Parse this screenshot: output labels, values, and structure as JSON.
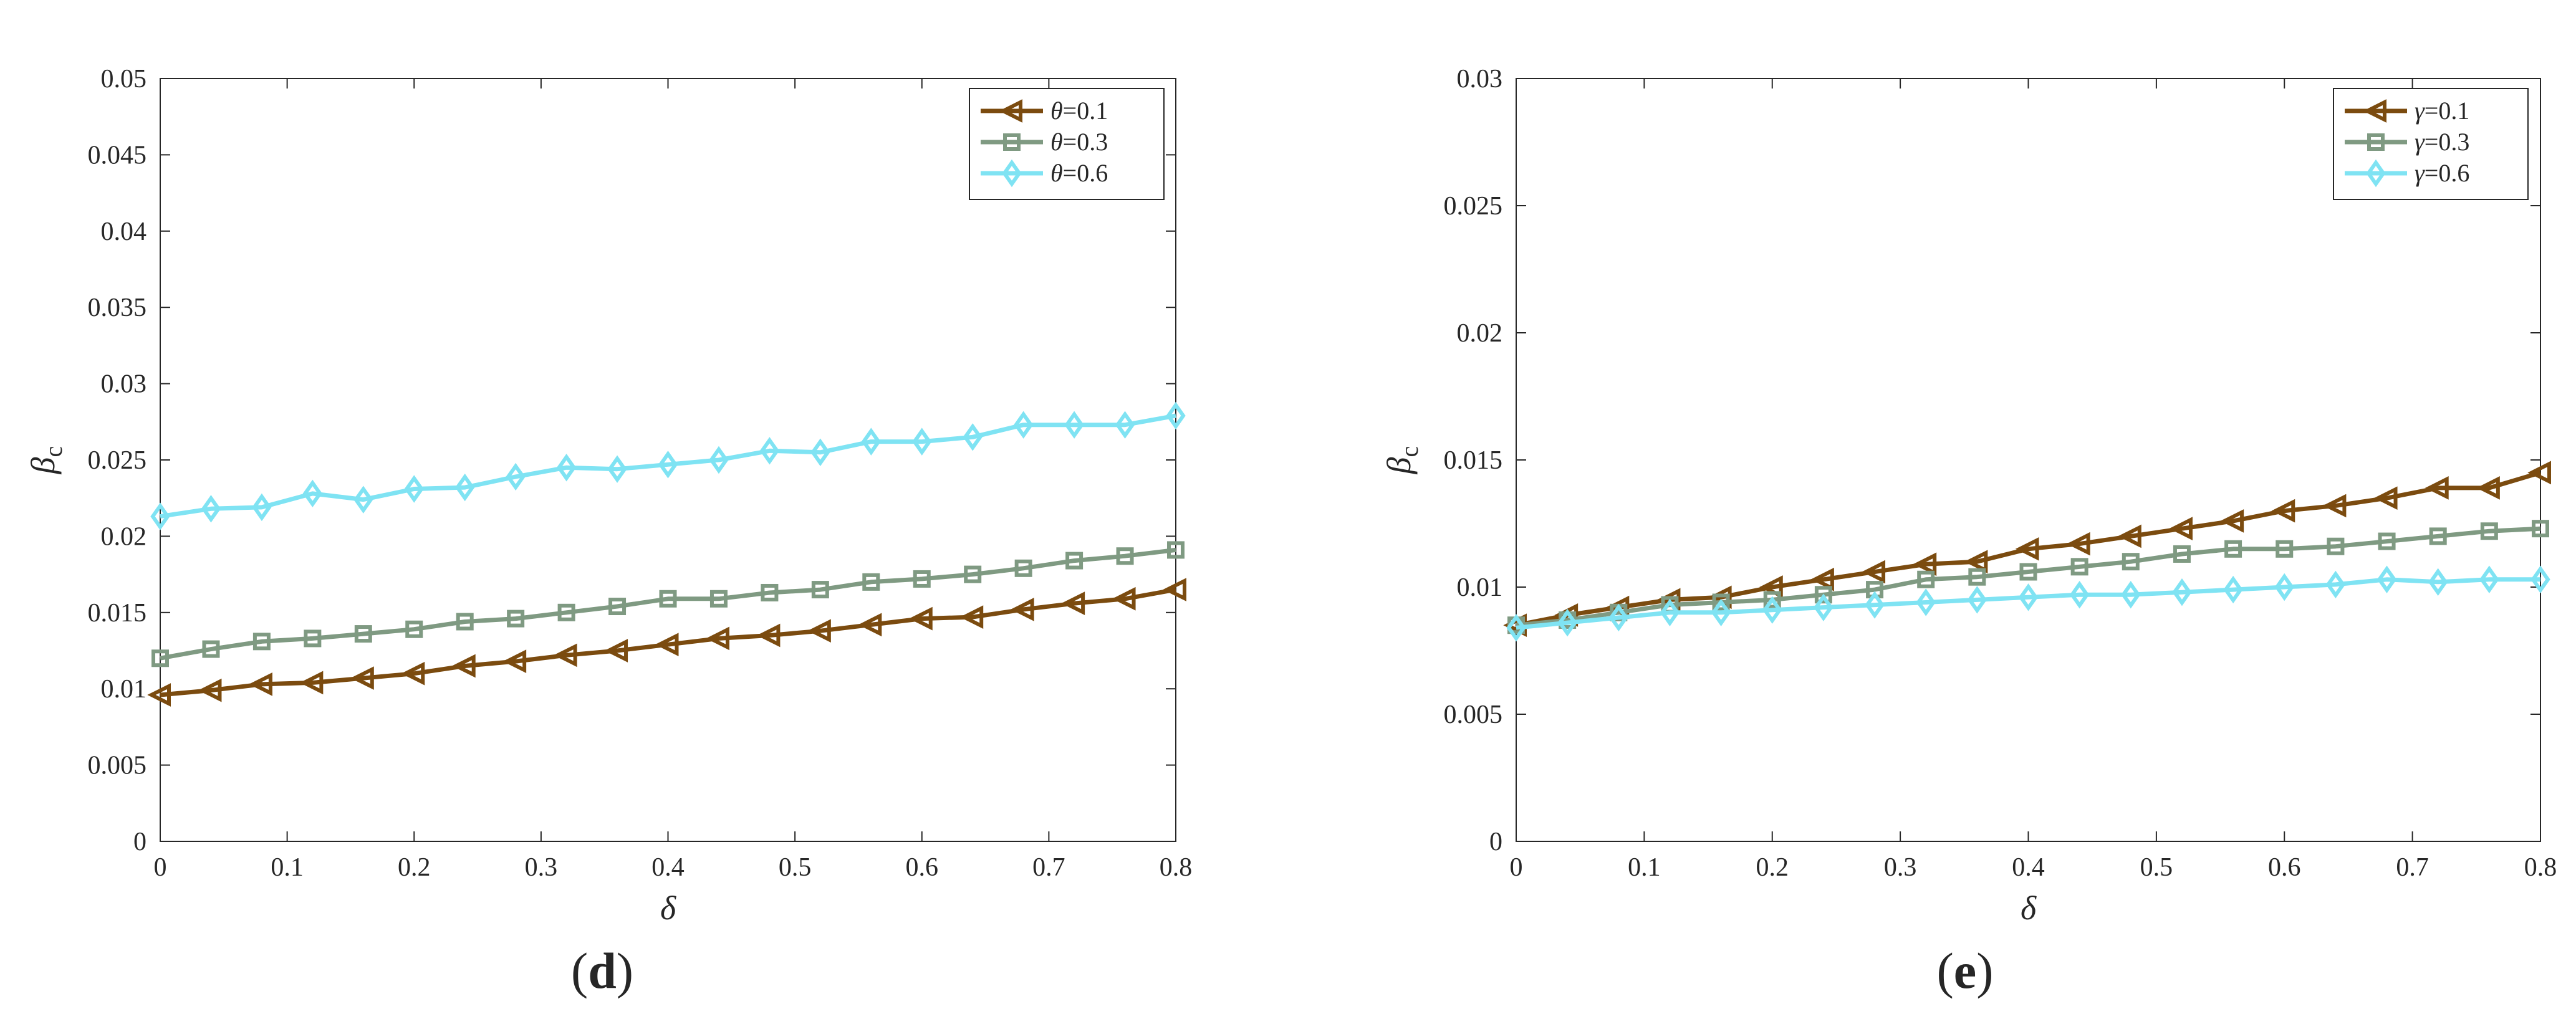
{
  "chart_data": [
    {
      "type": "line",
      "panel": "d",
      "caption_letter": "d",
      "xlabel": "δ",
      "ylabel": "β",
      "ylabel_sub": "c",
      "xlim": [
        0,
        0.8
      ],
      "ylim": [
        0,
        0.05
      ],
      "xticks": [
        "0",
        "0.1",
        "0.2",
        "0.3",
        "0.4",
        "0.5",
        "0.6",
        "0.7",
        "0.8"
      ],
      "yticks": [
        "0",
        "0.005",
        "0.01",
        "0.015",
        "0.02",
        "0.025",
        "0.03",
        "0.035",
        "0.04",
        "0.045",
        "0.05"
      ],
      "legend_position": "top-right",
      "x": [
        0,
        0.04,
        0.08,
        0.12,
        0.16,
        0.2,
        0.24,
        0.28,
        0.32,
        0.36,
        0.4,
        0.44,
        0.48,
        0.52,
        0.56,
        0.6,
        0.64,
        0.68,
        0.72,
        0.76,
        0.8
      ],
      "series": [
        {
          "symbol": "θ",
          "value_text": "=0.1",
          "marker": "triangle-left",
          "color": "#7B4B0F",
          "values": [
            0.0096,
            0.0099,
            0.0103,
            0.0104,
            0.0107,
            0.011,
            0.0115,
            0.0118,
            0.0122,
            0.0125,
            0.0129,
            0.0133,
            0.0135,
            0.0138,
            0.0142,
            0.0146,
            0.0147,
            0.0152,
            0.0156,
            0.0159,
            0.0165
          ]
        },
        {
          "symbol": "θ",
          "value_text": "=0.3",
          "marker": "square",
          "color": "#7F9A82",
          "values": [
            0.012,
            0.0126,
            0.0131,
            0.0133,
            0.0136,
            0.0139,
            0.0144,
            0.0146,
            0.015,
            0.0154,
            0.0159,
            0.0159,
            0.0163,
            0.0165,
            0.017,
            0.0172,
            0.0175,
            0.0179,
            0.0184,
            0.0187,
            0.0191
          ]
        },
        {
          "symbol": "θ",
          "value_text": "=0.6",
          "marker": "diamond",
          "color": "#7FE3F3",
          "values": [
            0.0213,
            0.0218,
            0.0219,
            0.0228,
            0.0224,
            0.0231,
            0.0232,
            0.0239,
            0.0245,
            0.0244,
            0.0247,
            0.025,
            0.0256,
            0.0255,
            0.0262,
            0.0262,
            0.0265,
            0.0273,
            0.0273,
            0.0273,
            0.0279
          ]
        }
      ]
    },
    {
      "type": "line",
      "panel": "e",
      "caption_letter": "e",
      "xlabel": "δ",
      "ylabel": "β",
      "ylabel_sub": "c",
      "xlim": [
        0,
        0.8
      ],
      "ylim": [
        0,
        0.03
      ],
      "xticks": [
        "0",
        "0.1",
        "0.2",
        "0.3",
        "0.4",
        "0.5",
        "0.6",
        "0.7",
        "0.8"
      ],
      "yticks": [
        "0",
        "0.005",
        "0.01",
        "0.015",
        "0.02",
        "0.025",
        "0.03"
      ],
      "legend_position": "top-right",
      "x": [
        0,
        0.04,
        0.08,
        0.12,
        0.16,
        0.2,
        0.24,
        0.28,
        0.32,
        0.36,
        0.4,
        0.44,
        0.48,
        0.52,
        0.56,
        0.6,
        0.64,
        0.68,
        0.72,
        0.76,
        0.8
      ],
      "series": [
        {
          "symbol": "γ",
          "value_text": "=0.1",
          "marker": "triangle-left",
          "color": "#7B4B0F",
          "values": [
            0.0085,
            0.0089,
            0.0092,
            0.0095,
            0.0096,
            0.01,
            0.0103,
            0.0106,
            0.0109,
            0.011,
            0.0115,
            0.0117,
            0.012,
            0.0123,
            0.0126,
            0.013,
            0.0132,
            0.0135,
            0.0139,
            0.0139,
            0.0145
          ]
        },
        {
          "symbol": "γ",
          "value_text": "=0.3",
          "marker": "square",
          "color": "#7F9A82",
          "values": [
            0.0085,
            0.0087,
            0.009,
            0.0093,
            0.0094,
            0.0095,
            0.0097,
            0.0099,
            0.0103,
            0.0104,
            0.0106,
            0.0108,
            0.011,
            0.0113,
            0.0115,
            0.0115,
            0.0116,
            0.0118,
            0.012,
            0.0122,
            0.0123
          ]
        },
        {
          "symbol": "γ",
          "value_text": "=0.6",
          "marker": "diamond",
          "color": "#7FE3F3",
          "values": [
            0.0084,
            0.0086,
            0.0088,
            0.009,
            0.009,
            0.0091,
            0.0092,
            0.0093,
            0.0094,
            0.0095,
            0.0096,
            0.0097,
            0.0097,
            0.0098,
            0.0099,
            0.01,
            0.0101,
            0.0103,
            0.0102,
            0.0103,
            0.0103
          ]
        }
      ]
    }
  ]
}
